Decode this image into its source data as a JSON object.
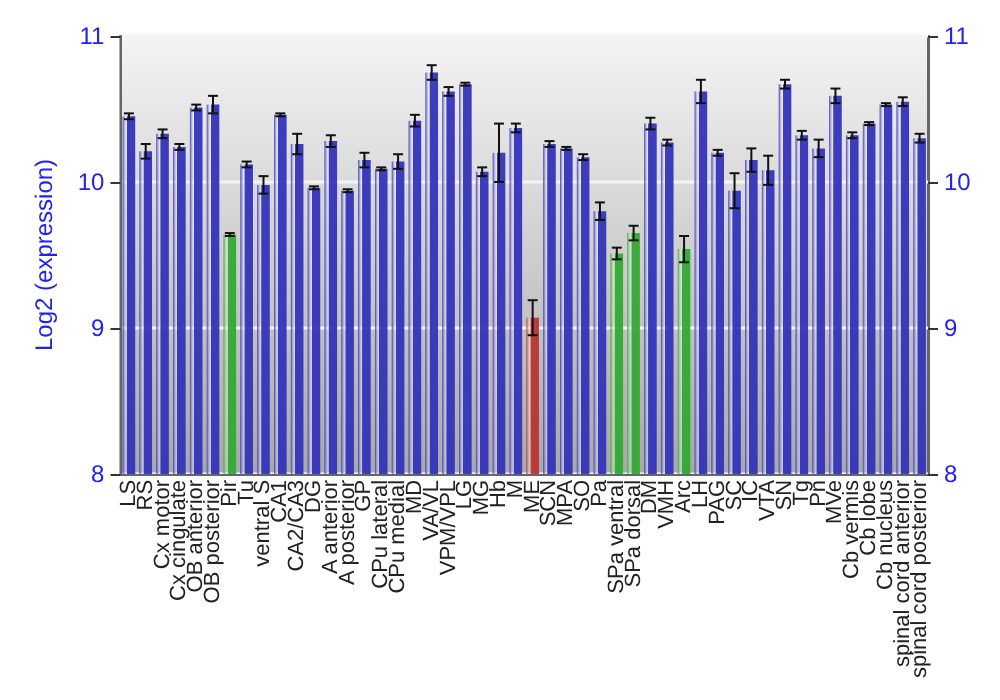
{
  "chart_data": {
    "type": "bar",
    "ylabel": "Log2 (expression)",
    "categories": [
      "LS",
      "RS",
      "Cx motor",
      "Cx cingulate",
      "OB anterior",
      "OB posterior",
      "Pir",
      "Tu",
      "ventral S",
      "CA1",
      "CA2/CA3",
      "DG",
      "A anterior",
      "A posterior",
      "GP",
      "CPu lateral",
      "CPu medial",
      "MD",
      "VA/VL",
      "VPM/VPL",
      "LG",
      "MG",
      "Hb",
      "M",
      "ME",
      "SCN",
      "MPA",
      "SO",
      "Pa",
      "SPa ventral",
      "SPa dorsal",
      "DM",
      "VMH",
      "Arc",
      "LH",
      "PAG",
      "SC",
      "IC",
      "VTA",
      "SN",
      "Tg",
      "Pn",
      "MVe",
      "Cb vermis",
      "Cb lobe",
      "Cb nucleus",
      "spinal cord anterior",
      "spinal cord posterior"
    ],
    "values": [
      10.45,
      10.21,
      10.33,
      10.24,
      10.51,
      10.53,
      9.64,
      10.12,
      9.98,
      10.46,
      10.26,
      9.96,
      10.28,
      9.94,
      10.15,
      10.09,
      10.14,
      10.42,
      10.75,
      10.62,
      10.67,
      10.07,
      10.2,
      10.37,
      9.07,
      10.26,
      10.23,
      10.17,
      9.8,
      9.51,
      9.65,
      10.4,
      10.27,
      9.54,
      10.62,
      10.2,
      9.94,
      10.15,
      10.08,
      10.67,
      10.32,
      10.23,
      10.59,
      10.32,
      10.4,
      10.53,
      10.55,
      10.3
    ],
    "errors": [
      0.02,
      0.05,
      0.03,
      0.02,
      0.02,
      0.06,
      0.01,
      0.02,
      0.06,
      0.01,
      0.07,
      0.01,
      0.04,
      0.01,
      0.05,
      0.01,
      0.05,
      0.04,
      0.05,
      0.03,
      0.01,
      0.03,
      0.2,
      0.03,
      0.12,
      0.02,
      0.01,
      0.02,
      0.06,
      0.04,
      0.05,
      0.04,
      0.02,
      0.09,
      0.08,
      0.02,
      0.12,
      0.08,
      0.1,
      0.03,
      0.03,
      0.06,
      0.05,
      0.02,
      0.01,
      0.01,
      0.03,
      0.03
    ],
    "colors": [
      "#3333bb",
      "#3333bb",
      "#3333bb",
      "#3333bb",
      "#3333bb",
      "#3333bb",
      "#33aa33",
      "#3333bb",
      "#3333bb",
      "#3333bb",
      "#3333bb",
      "#3333bb",
      "#3333bb",
      "#3333bb",
      "#3333bb",
      "#3333bb",
      "#3333bb",
      "#3333bb",
      "#3333bb",
      "#3333bb",
      "#3333bb",
      "#3333bb",
      "#3333bb",
      "#3333bb",
      "#bb3333",
      "#3333bb",
      "#3333bb",
      "#3333bb",
      "#3333bb",
      "#33aa33",
      "#33aa33",
      "#3333bb",
      "#3333bb",
      "#33aa33",
      "#3333bb",
      "#3333bb",
      "#3333bb",
      "#3333bb",
      "#3333bb",
      "#3333bb",
      "#3333bb",
      "#3333bb",
      "#3333bb",
      "#3333bb",
      "#3333bb",
      "#3333bb",
      "#3333bb",
      "#3333bb"
    ],
    "ylim": [
      8,
      11
    ],
    "yticks": [
      8,
      9,
      10,
      11
    ],
    "y2lim": [
      8,
      11
    ],
    "y2ticks": [
      8,
      9,
      10,
      11
    ],
    "grid": "y"
  }
}
